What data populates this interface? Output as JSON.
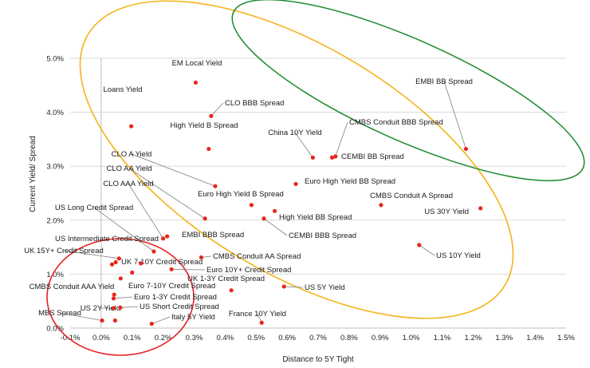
{
  "chart_data": {
    "type": "scatter",
    "xlabel": "Distance to 5Y Tight",
    "ylabel": "Current Yield/ Spread",
    "xlim": [
      -0.1,
      1.5
    ],
    "ylim": [
      0,
      5.0
    ],
    "x_ticks": [
      "-0.1%",
      "0.0%",
      "0.1%",
      "0.2%",
      "0.3%",
      "0.4%",
      "0.5%",
      "0.6%",
      "0.7%",
      "0.8%",
      "0.9%",
      "1.0%",
      "1.1%",
      "1.2%",
      "1.3%",
      "1.4%",
      "1.5%"
    ],
    "y_ticks": [
      "0.0%",
      "1.0%",
      "2.0%",
      "3.0%",
      "4.0%",
      "5.0%"
    ],
    "grid": "horizontal",
    "marker_color": "#e8261c",
    "points": [
      {
        "name": "EM Local Yield",
        "x": 0.305,
        "y": 4.55
      },
      {
        "name": "Loans Yield",
        "x": 0.097,
        "y": 3.74
      },
      {
        "name": "CLO BBB Spread",
        "x": 0.355,
        "y": 3.93
      },
      {
        "name": "High Yield B Spread",
        "x": 0.347,
        "y": 3.32
      },
      {
        "name": "EMBI BB Spread",
        "x": 1.177,
        "y": 3.32
      },
      {
        "name": "CMBS Conduit BBB Spread",
        "x": 0.756,
        "y": 3.18
      },
      {
        "name": "China 10Y Yield",
        "x": 0.683,
        "y": 3.16
      },
      {
        "name": "CEMBI BB Spread",
        "x": 0.745,
        "y": 3.16
      },
      {
        "name": "CLO A Yield",
        "x": 0.368,
        "y": 2.63
      },
      {
        "name": "CLO AA Yield",
        "x": 0.335,
        "y": 2.03
      },
      {
        "name": "Euro High Yield BB Spread",
        "x": 0.628,
        "y": 2.67
      },
      {
        "name": "Euro High Yield B Spread",
        "x": 0.485,
        "y": 2.28
      },
      {
        "name": "High Yield BB Spread",
        "x": 0.56,
        "y": 2.17
      },
      {
        "name": "CEMBI BBB Spread",
        "x": 0.525,
        "y": 2.03
      },
      {
        "name": "CMBS Conduit A Spread",
        "x": 0.903,
        "y": 2.28
      },
      {
        "name": "US 30Y Yield",
        "x": 1.224,
        "y": 2.22
      },
      {
        "name": "CLO AAA Yield",
        "x": 0.2,
        "y": 1.66
      },
      {
        "name": "US Long Credit Spread",
        "x": 0.17,
        "y": 1.42
      },
      {
        "name": "EMBI BBB Spread",
        "x": 0.213,
        "y": 1.7
      },
      {
        "name": "US 10Y Yield",
        "x": 1.026,
        "y": 1.54
      },
      {
        "name": "US Intermediate Credit Spread",
        "x": 0.128,
        "y": 1.2
      },
      {
        "name": "UK 15Y+ Credit Spread",
        "x": 0.058,
        "y": 1.29
      },
      {
        "name": "UK 7-10Y Credit Spread",
        "x": 0.047,
        "y": 1.22
      },
      {
        "name": "CMBS Conduit AA Spread",
        "x": 0.323,
        "y": 1.31
      },
      {
        "name": "Euro 10Y+ Credit Spread",
        "x": 0.227,
        "y": 1.09
      },
      {
        "name": "UK 1-3Y Credit Spread",
        "x": 0.1,
        "y": 1.03
      },
      {
        "name": "Euro 7-10Y Credit Spread",
        "x": 0.063,
        "y": 0.92
      },
      {
        "name": "CMBS Conduit AAA Yield",
        "x": 0.035,
        "y": 1.18
      },
      {
        "name": "Euro 1-3Y Credit Spread",
        "x": 0.04,
        "y": 0.55
      },
      {
        "name": "US 5Y Yield",
        "x": 0.59,
        "y": 0.77
      },
      {
        "name": "US Short Credit Spread",
        "x": 0.062,
        "y": 0.38
      },
      {
        "name": "US 2Y Yield",
        "x": 0.04,
        "y": 0.37
      },
      {
        "name": "MBS Spread",
        "x": 0.003,
        "y": 0.14
      },
      {
        "name": "Italy 5Y Yield",
        "x": 0.163,
        "y": 0.08
      },
      {
        "name": "France 10Y Yield",
        "x": 0.518,
        "y": 0.1
      },
      {
        "name": "",
        "x": 0.42,
        "y": 0.7
      },
      {
        "name": "",
        "x": 0.042,
        "y": 0.62
      },
      {
        "name": "",
        "x": 0.045,
        "y": 0.14
      }
    ],
    "annotations": [
      {
        "shape": "ellipse",
        "color": "#f4b41a"
      },
      {
        "shape": "ellipse",
        "color": "#1a8a2e"
      },
      {
        "shape": "ellipse",
        "color": "#e52222"
      }
    ]
  }
}
